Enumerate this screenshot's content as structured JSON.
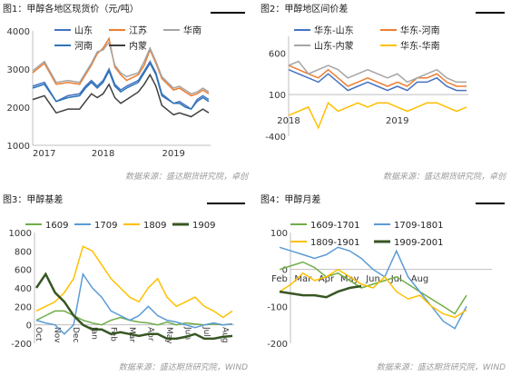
{
  "chart_data": [
    {
      "type": "line",
      "title": "图1：甲醇各地区现货价（元/吨）",
      "source": "数据来源：盛达期货研究院，卓创",
      "x_ticks": [
        "2017",
        "2018",
        "2019"
      ],
      "ylim": [
        1000,
        4000
      ],
      "y_ticks": [
        1000,
        2000,
        3000,
        4000
      ],
      "x_months": [
        0,
        2,
        4,
        6,
        8,
        9,
        10,
        11,
        12,
        13,
        14,
        15,
        16,
        18,
        19,
        20,
        21,
        22,
        24,
        25,
        26,
        27,
        28,
        29,
        30
      ],
      "series": [
        {
          "name": "山东",
          "color": "#4472c4",
          "values": [
            2550,
            2650,
            2150,
            2300,
            2350,
            2550,
            2700,
            2550,
            2700,
            3000,
            2600,
            2450,
            2550,
            2700,
            2950,
            3200,
            2900,
            2350,
            2100,
            2150,
            2050,
            1950,
            2200,
            2300,
            2200
          ]
        },
        {
          "name": "江苏",
          "color": "#ed7d31",
          "values": [
            2900,
            3150,
            2600,
            2650,
            2600,
            2850,
            3100,
            3400,
            3550,
            3800,
            3050,
            2850,
            2700,
            2850,
            3100,
            3500,
            3150,
            2750,
            2450,
            2500,
            2400,
            2300,
            2350,
            2450,
            2350
          ]
        },
        {
          "name": "华南",
          "color": "#a5a5a5",
          "values": [
            2950,
            3200,
            2650,
            2700,
            2650,
            2900,
            3150,
            3450,
            3500,
            3700,
            3100,
            2900,
            2800,
            2900,
            3200,
            3550,
            3200,
            2800,
            2500,
            2550,
            2450,
            2350,
            2400,
            2500,
            2400
          ]
        },
        {
          "name": "河南",
          "color": "#2e75b6",
          "values": [
            2500,
            2600,
            2150,
            2250,
            2300,
            2500,
            2650,
            2500,
            2650,
            2950,
            2550,
            2400,
            2500,
            2650,
            2900,
            3150,
            2850,
            2300,
            2100,
            2100,
            2000,
            1950,
            2150,
            2250,
            2150
          ]
        },
        {
          "name": "内蒙",
          "color": "#404040",
          "values": [
            2200,
            2300,
            1850,
            1950,
            1950,
            2150,
            2350,
            2250,
            2350,
            2600,
            2250,
            2100,
            2200,
            2400,
            2600,
            2850,
            2550,
            2050,
            1800,
            1850,
            1800,
            1750,
            1850,
            1950,
            1850
          ]
        }
      ]
    },
    {
      "type": "line",
      "title": "图2：甲醇地区间价差",
      "source": "数据来源：盛达期货研究院，卓创",
      "x_ticks": [
        "2018",
        "2019"
      ],
      "ylim": [
        -400,
        800
      ],
      "y_ticks": [
        -400,
        100,
        600
      ],
      "x_months": [
        0,
        1,
        2,
        3,
        4,
        5,
        6,
        7,
        8,
        9,
        10,
        11,
        12,
        13,
        14,
        15,
        16,
        17,
        18
      ],
      "series": [
        {
          "name": "华东-山东",
          "color": "#4472c4",
          "values": [
            400,
            350,
            300,
            250,
            350,
            250,
            150,
            200,
            250,
            200,
            150,
            200,
            150,
            250,
            250,
            300,
            200,
            150,
            150
          ]
        },
        {
          "name": "华东-河南",
          "color": "#ed7d31",
          "values": [
            450,
            400,
            350,
            300,
            400,
            300,
            200,
            250,
            300,
            250,
            200,
            250,
            200,
            300,
            300,
            350,
            250,
            200,
            200
          ]
        },
        {
          "name": "山东-内蒙",
          "color": "#a5a5a5",
          "values": [
            450,
            500,
            350,
            400,
            450,
            400,
            300,
            350,
            400,
            350,
            300,
            350,
            250,
            300,
            350,
            400,
            300,
            250,
            250
          ]
        },
        {
          "name": "华东-华南",
          "color": "#ffc000",
          "values": [
            -150,
            -100,
            -50,
            -300,
            0,
            -100,
            -50,
            0,
            -50,
            0,
            0,
            -50,
            -100,
            -50,
            0,
            0,
            -50,
            -100,
            -50
          ]
        }
      ]
    },
    {
      "type": "line",
      "title": "图3：甲醇基差",
      "source": "数据来源：盛达期货研究院，WIND",
      "x_ticks": [
        "Oct",
        "Nov",
        "Dec",
        "Jan",
        "Feb",
        "Mar",
        "Apr",
        "May",
        "Jun",
        "Jul",
        "Aug"
      ],
      "ylim": [
        -200,
        1000
      ],
      "y_ticks": [
        -200,
        0,
        200,
        400,
        600,
        800,
        1000
      ],
      "x_index": [
        0,
        0.5,
        1,
        1.5,
        2,
        2.5,
        3,
        3.5,
        4,
        4.5,
        5,
        5.5,
        6,
        6.5,
        7,
        7.5,
        8,
        8.5,
        9,
        9.5,
        10,
        10.5
      ],
      "series": [
        {
          "name": "1609",
          "color": "#70ad47",
          "values": [
            50,
            100,
            150,
            150,
            100,
            50,
            20,
            0,
            50,
            80,
            50,
            30,
            20,
            0,
            30,
            0,
            20,
            10,
            0,
            10,
            0,
            10
          ]
        },
        {
          "name": "1709",
          "color": "#5b9bd5",
          "values": [
            50,
            20,
            0,
            -100,
            0,
            550,
            400,
            300,
            150,
            100,
            50,
            100,
            200,
            100,
            50,
            30,
            0,
            -30,
            0,
            20,
            0,
            10
          ]
        },
        {
          "name": "1809",
          "color": "#ffc000",
          "values": [
            150,
            200,
            250,
            350,
            500,
            850,
            800,
            650,
            500,
            400,
            300,
            250,
            400,
            500,
            300,
            200,
            250,
            300,
            200,
            150,
            80,
            150
          ]
        },
        {
          "name": "1909",
          "color": "#375623",
          "values": [
            400,
            550,
            350,
            250,
            100,
            0,
            -50,
            -50,
            -100,
            -80,
            -100,
            -120,
            -100,
            -100,
            -150,
            -150,
            -130,
            -100,
            -150,
            -150,
            -130,
            -120
          ]
        }
      ]
    },
    {
      "type": "line",
      "title": "图4：甲醇月差",
      "source": "数据来源：盛达期货研究院，WIND",
      "x_ticks": [
        "Feb",
        "Mar",
        "Apr",
        "May",
        "Jun",
        "Jul",
        "Aug"
      ],
      "ylim": [
        -200,
        100
      ],
      "y_ticks": [
        -200,
        -100,
        0,
        100
      ],
      "x_index": [
        0,
        0.5,
        1,
        1.5,
        2,
        2.5,
        3,
        3.5,
        4,
        4.5,
        5,
        5.5,
        6,
        6.5,
        7,
        7.5,
        8
      ],
      "series": [
        {
          "name": "1609-1701",
          "color": "#70ad47",
          "values": [
            0,
            10,
            20,
            5,
            -20,
            -10,
            -30,
            -50,
            -40,
            -30,
            -20,
            -40,
            -60,
            -80,
            -100,
            -120,
            -70
          ]
        },
        {
          "name": "1709-1801",
          "color": "#5b9bd5",
          "values": [
            60,
            50,
            40,
            30,
            40,
            60,
            50,
            30,
            0,
            -20,
            50,
            -20,
            -60,
            -100,
            -140,
            -160,
            -100
          ]
        },
        {
          "name": "1809-1901",
          "color": "#ffc000",
          "values": [
            -60,
            -40,
            -10,
            -30,
            -20,
            0,
            -20,
            -40,
            -50,
            -20,
            -60,
            -80,
            -70,
            -100,
            -120,
            -130,
            -110
          ]
        },
        {
          "name": "1909-2001",
          "color": "#375623",
          "values": [
            -60,
            -65,
            -70,
            -70,
            -75,
            -60,
            -50,
            -45
          ]
        }
      ]
    }
  ]
}
